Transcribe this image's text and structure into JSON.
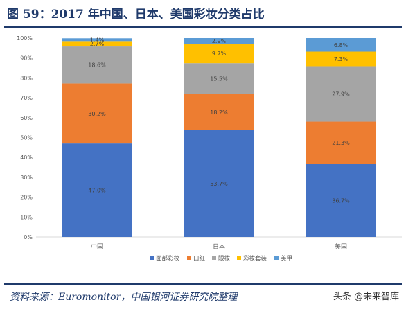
{
  "header": {
    "title": "图 59：2017 年中国、日本、美国彩妆分类占比"
  },
  "footer": {
    "source": "资料来源：Euromonitor，中国银河证券研究院整理",
    "watermark": "头条 @未来智库"
  },
  "colors": {
    "面部彩妆": "#4472c4",
    "口红": "#ed7d31",
    "眼妆": "#a5a5a5",
    "彩妆套装": "#ffc000",
    "美甲": "#5b9bd5",
    "frame": "#1f3a6b"
  },
  "chart_data": {
    "type": "bar",
    "stacked": true,
    "categories": [
      "中国",
      "日本",
      "美国"
    ],
    "series": [
      {
        "name": "面部彩妆",
        "values": [
          47.0,
          53.7,
          36.7
        ],
        "labels": [
          "47.0%",
          "53.7%",
          "36.7%"
        ]
      },
      {
        "name": "口红",
        "values": [
          30.2,
          18.2,
          21.3
        ],
        "labels": [
          "30.2%",
          "18.2%",
          "21.3%"
        ]
      },
      {
        "name": "眼妆",
        "values": [
          18.6,
          15.5,
          27.9
        ],
        "labels": [
          "18.6%",
          "15.5%",
          "27.9%"
        ]
      },
      {
        "name": "彩妆套装",
        "values": [
          2.7,
          9.7,
          7.3
        ],
        "labels": [
          "2.7%",
          "9.7%",
          "7.3%"
        ]
      },
      {
        "name": "美甲",
        "values": [
          1.4,
          2.9,
          6.8
        ],
        "labels": [
          "1.4%",
          "2.9%",
          "6.8%"
        ]
      }
    ],
    "y_ticks": [
      "0%",
      "10%",
      "20%",
      "30%",
      "40%",
      "50%",
      "60%",
      "70%",
      "80%",
      "90%",
      "100%"
    ],
    "ylim": [
      0,
      100
    ],
    "grid": false,
    "legend": "bottom"
  }
}
